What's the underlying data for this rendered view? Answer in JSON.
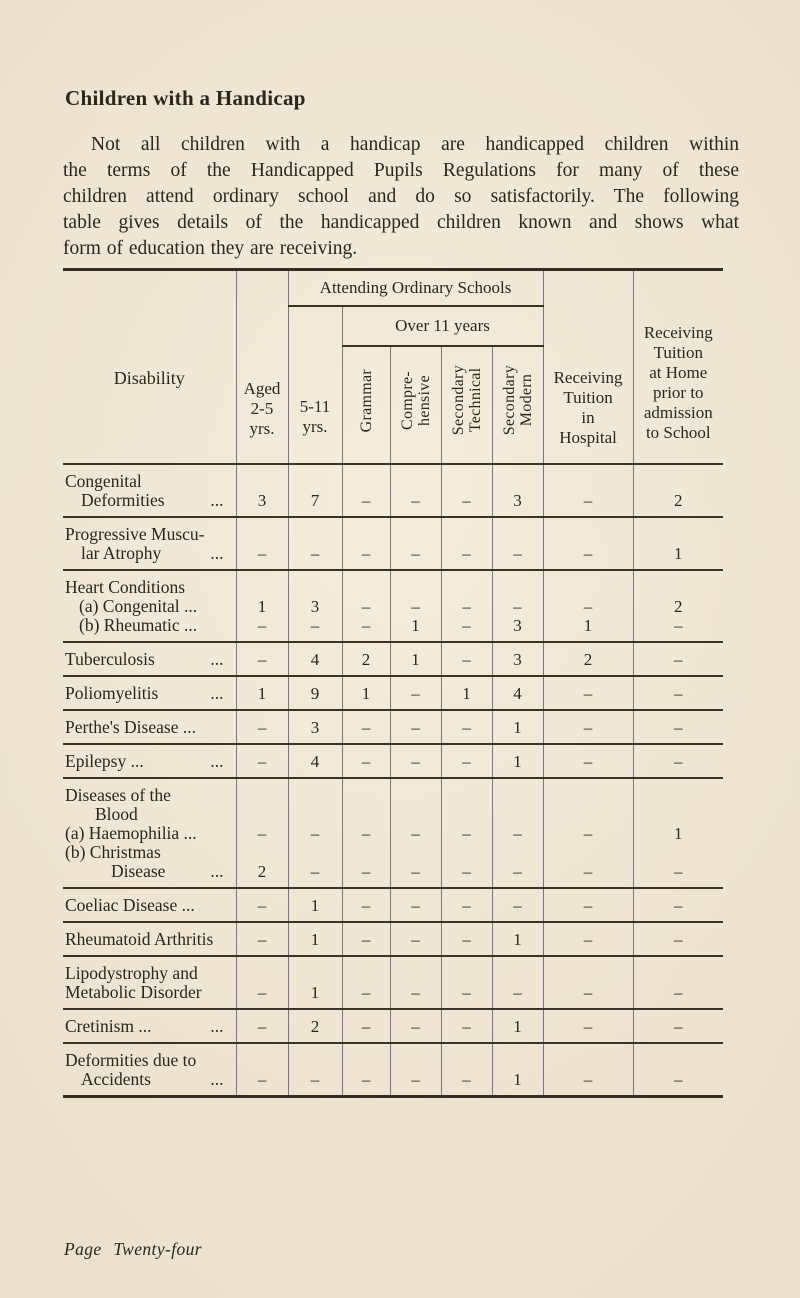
{
  "page": {
    "title": "Children with a Handicap",
    "footer": "Page Twenty-four"
  },
  "intro": {
    "lines": [
      "Not all children with a handicap are handicapped children within",
      "the terms of the Handicapped Pupils Regulations for many of these",
      "children attend ordinary school and do so satisfactorily.  The following",
      "table gives details of the handicapped children known and shows what",
      "form of education they are receiving."
    ]
  },
  "colors": {
    "paper": "#ebe2cf",
    "ink": "#2b261e",
    "rule_horizontal": "#342d23",
    "rule_vertical": "#7b7487"
  },
  "table": {
    "header": {
      "disability": "Disability",
      "aged": "Aged\n2-5\nyrs.",
      "attending": "Attending Ordinary Schools",
      "age_5_11": "5-11\nyrs.",
      "over11": "Over 11 years",
      "grammar": "Grammar",
      "comprehensive": "Compre-\nhensive",
      "sec_technical": "Secondary\nTechnical",
      "sec_modern": "Secondary\nModern",
      "hospital": "Receiving\nTuition\nin\nHospital",
      "home": "Receiving\nTuition\nat Home\nprior to\nadmission\nto School"
    },
    "value_columns": [
      "Aged 2-5 yrs.",
      "5-11 yrs.",
      "Grammar",
      "Comprehensive",
      "Secondary Technical",
      "Secondary Modern",
      "Receiving Tuition in Hospital",
      "Receiving Tuition at Home prior to admission to School"
    ],
    "rows": [
      {
        "name": "congenital-deformities",
        "lines": [
          {
            "text": "Congenital",
            "indent": 0
          },
          {
            "text": "Deformities",
            "indent": 16,
            "dots": "..."
          }
        ],
        "values": [
          [
            "3",
            "7",
            "–",
            "–",
            "–",
            "3",
            "–",
            "2"
          ]
        ]
      },
      {
        "name": "progressive-muscular-atrophy",
        "lines": [
          {
            "text": "Progressive Muscu-",
            "indent": 0
          },
          {
            "text": "lar Atrophy",
            "indent": 16,
            "dots": "..."
          }
        ],
        "values": [
          [
            "–",
            "–",
            "–",
            "–",
            "–",
            "–",
            "–",
            "1"
          ]
        ]
      },
      {
        "name": "heart-conditions",
        "lines": [
          {
            "text": "Heart Conditions",
            "indent": 0
          },
          {
            "text": "(a) Congenital ...",
            "indent": 14
          },
          {
            "text": "(b) Rheumatic ...",
            "indent": 14
          }
        ],
        "values": [
          [
            "1",
            "3",
            "–",
            "–",
            "–",
            "–",
            "–",
            "2"
          ],
          [
            "–",
            "–",
            "–",
            "1",
            "–",
            "3",
            "1",
            "–"
          ]
        ]
      },
      {
        "name": "tuberculosis",
        "lines": [
          {
            "text": "Tuberculosis",
            "indent": 0,
            "dots": "..."
          }
        ],
        "values": [
          [
            "–",
            "4",
            "2",
            "1",
            "–",
            "3",
            "2",
            "–"
          ]
        ]
      },
      {
        "name": "poliomyelitis",
        "lines": [
          {
            "text": "Poliomyelitis",
            "indent": 0,
            "dots": "..."
          }
        ],
        "values": [
          [
            "1",
            "9",
            "1",
            "–",
            "1",
            "4",
            "–",
            "–"
          ]
        ]
      },
      {
        "name": "perthes-disease",
        "lines": [
          {
            "text": "Perthe's Disease ...",
            "indent": 0
          }
        ],
        "values": [
          [
            "–",
            "3",
            "–",
            "–",
            "–",
            "1",
            "–",
            "–"
          ]
        ]
      },
      {
        "name": "epilepsy",
        "lines": [
          {
            "text": "Epilepsy ...",
            "indent": 0,
            "dots": "..."
          }
        ],
        "values": [
          [
            "–",
            "4",
            "–",
            "–",
            "–",
            "1",
            "–",
            "–"
          ]
        ]
      },
      {
        "name": "diseases-of-the-blood",
        "lines": [
          {
            "text": "Diseases of the",
            "indent": 0
          },
          {
            "text": "Blood",
            "indent": 30
          },
          {
            "text": "(a) Haemophilia ...",
            "indent": 0
          },
          {
            "text": "(b) Christmas",
            "indent": 0
          },
          {
            "text": "Disease",
            "indent": 46,
            "dots": "..."
          }
        ],
        "values": [
          [
            "–",
            "–",
            "–",
            "–",
            "–",
            "–",
            "–",
            "1"
          ],
          null,
          [
            "2",
            "–",
            "–",
            "–",
            "–",
            "–",
            "–",
            "–"
          ]
        ]
      },
      {
        "name": "coeliac-disease",
        "lines": [
          {
            "text": "Coeliac Disease ...",
            "indent": 0
          }
        ],
        "values": [
          [
            "–",
            "1",
            "–",
            "–",
            "–",
            "–",
            "–",
            "–"
          ]
        ]
      },
      {
        "name": "rheumatoid-arthritis",
        "lines": [
          {
            "text": "Rheumatoid Arthritis",
            "indent": 0
          }
        ],
        "values": [
          [
            "–",
            "1",
            "–",
            "–",
            "–",
            "1",
            "–",
            "–"
          ]
        ]
      },
      {
        "name": "lipodystrophy-metabolic-disorder",
        "lines": [
          {
            "text": "Lipodystrophy and",
            "indent": 0
          },
          {
            "text": "Metabolic Disorder",
            "indent": 0
          }
        ],
        "values": [
          [
            "–",
            "1",
            "–",
            "–",
            "–",
            "–",
            "–",
            "–"
          ]
        ]
      },
      {
        "name": "cretinism",
        "lines": [
          {
            "text": "Cretinism ...",
            "indent": 0,
            "dots": "..."
          }
        ],
        "values": [
          [
            "–",
            "2",
            "–",
            "–",
            "–",
            "1",
            "–",
            "–"
          ]
        ]
      },
      {
        "name": "deformities-due-to-accidents",
        "lines": [
          {
            "text": "Deformities due to",
            "indent": 0
          },
          {
            "text": "Accidents",
            "indent": 16,
            "dots": "..."
          }
        ],
        "values": [
          [
            "–",
            "–",
            "–",
            "–",
            "–",
            "1",
            "–",
            "–"
          ]
        ]
      }
    ]
  }
}
